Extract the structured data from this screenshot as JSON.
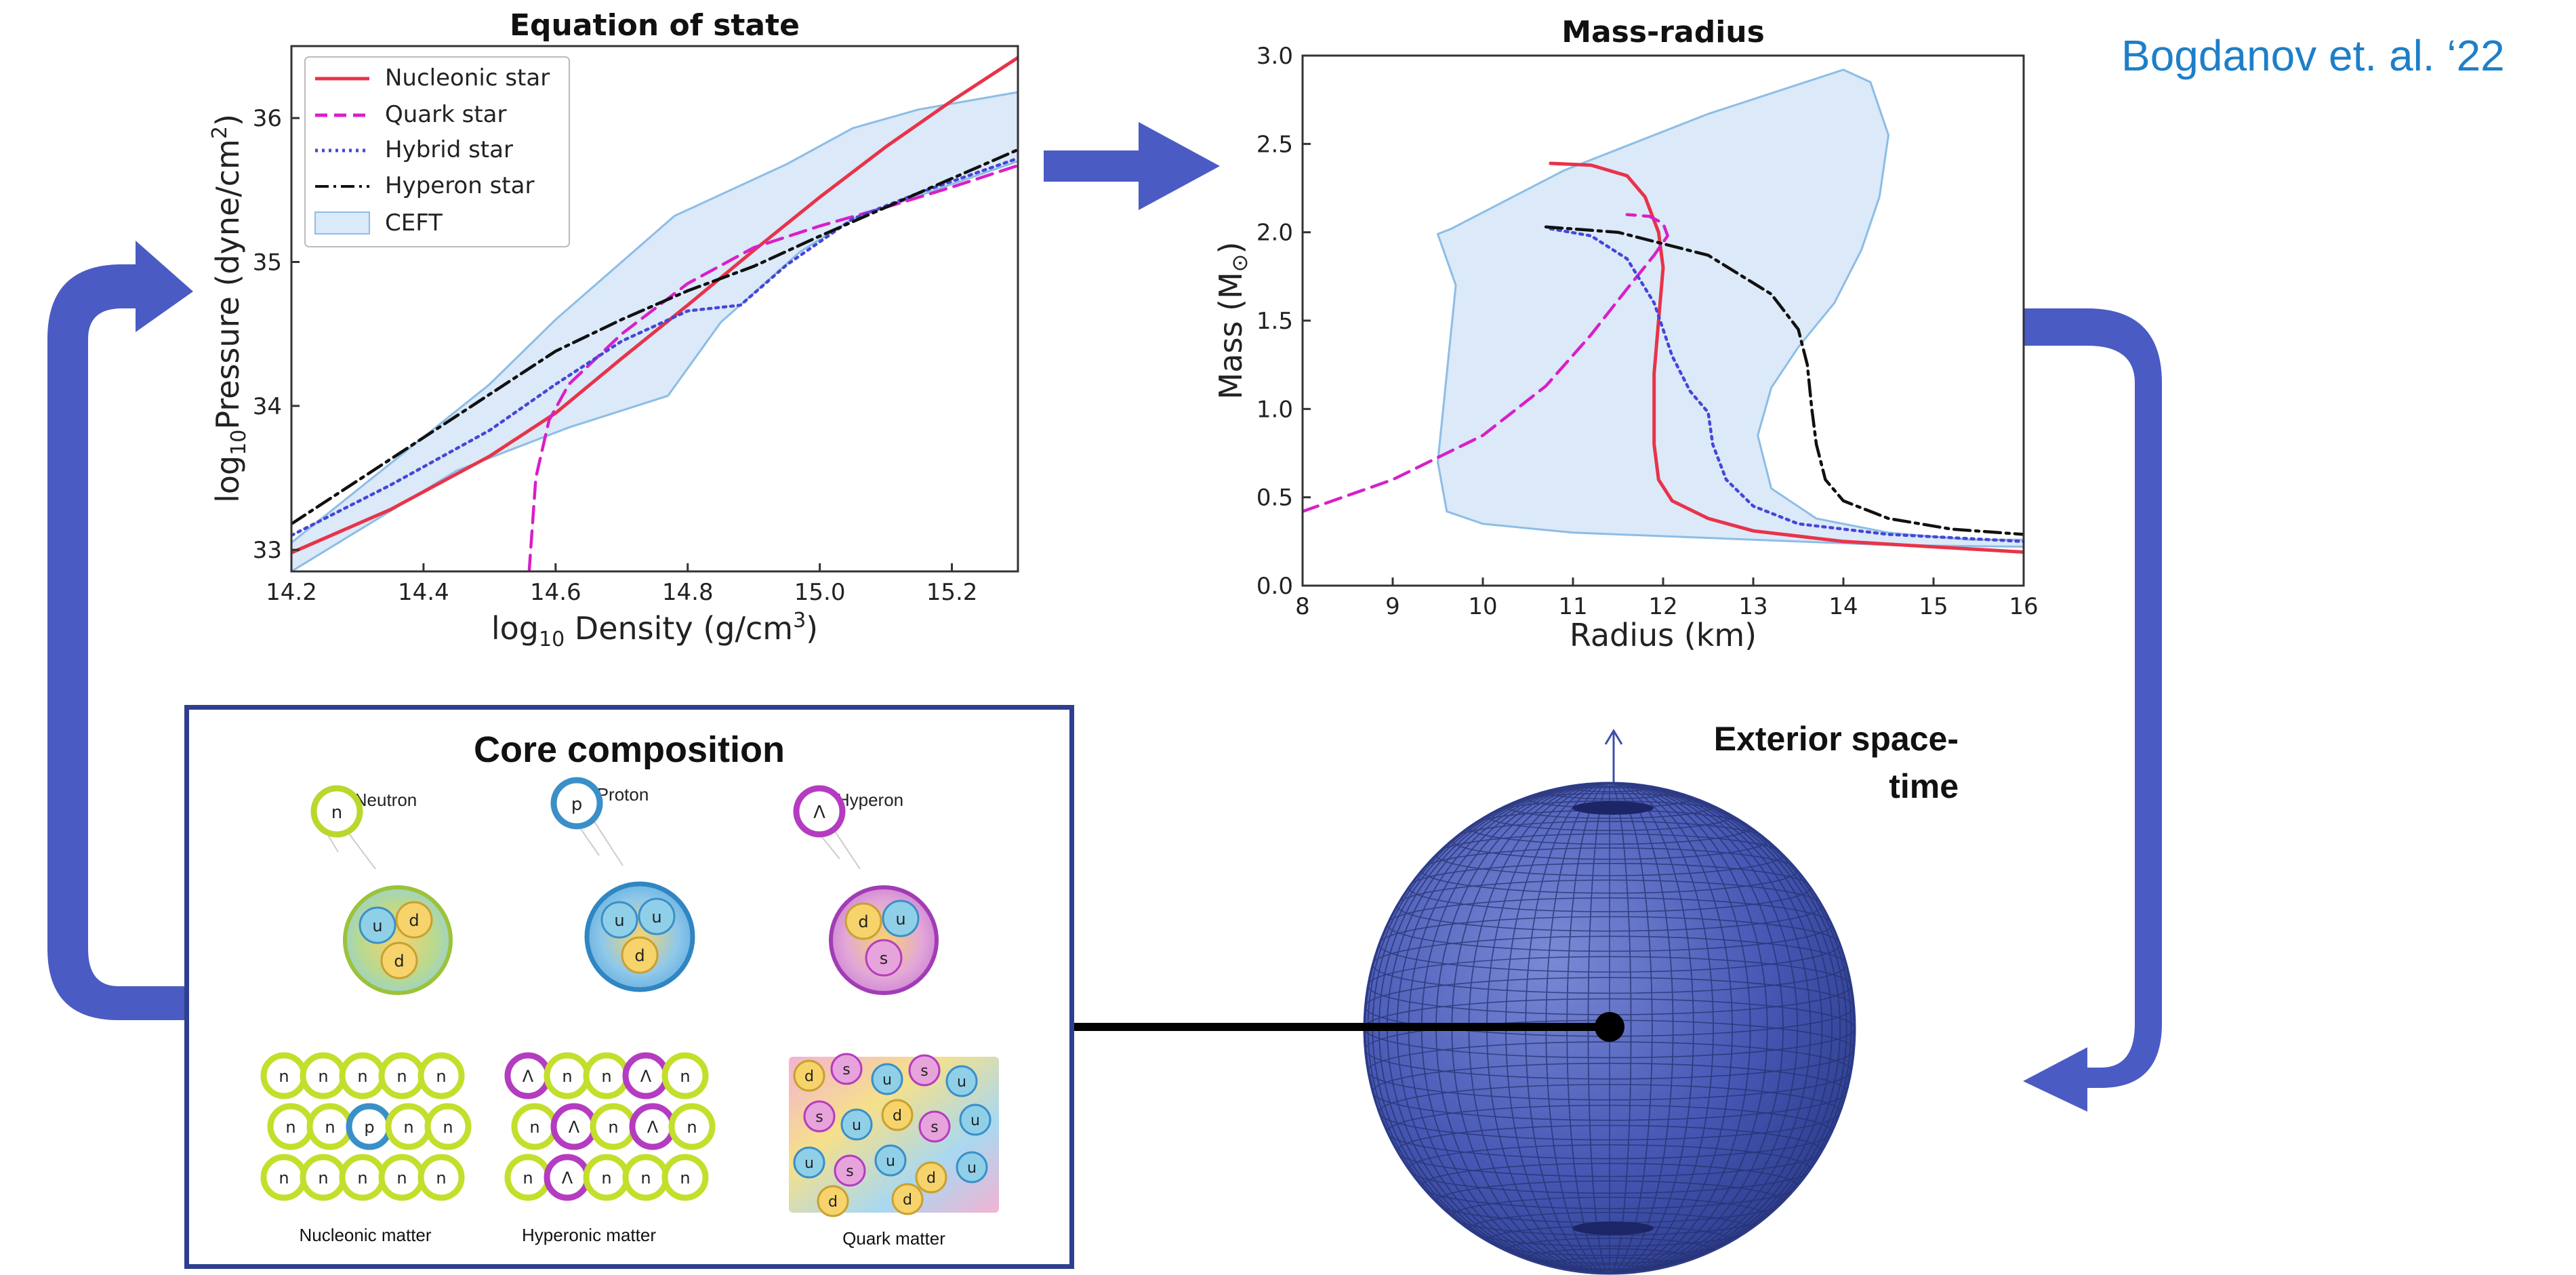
{
  "citation": "Bogdanov et. al. ‘22",
  "eos_chart": {
    "title": "Equation of state",
    "xlabel_prefix": "log",
    "xlabel_sub": "10",
    "xlabel_main": " Density (g/cm",
    "xlabel_sup": "3",
    "xlabel_end": ")",
    "ylabel_prefix": "log",
    "ylabel_sub": "10",
    "ylabel_main": "Pressure (dyne/cm",
    "ylabel_sup": "2",
    "ylabel_end": ")",
    "xticks": [
      "14.2",
      "14.4",
      "14.6",
      "14.8",
      "15.0",
      "15.2"
    ],
    "yticks": [
      "33",
      "34",
      "35",
      "36"
    ],
    "legend": [
      "Nucleonic star",
      "Quark star",
      "Hybrid star",
      "Hyperon star",
      "CEFT"
    ]
  },
  "mr_chart": {
    "title": "Mass-radius",
    "xlabel": "Radius (km)",
    "ylabel_main": "Mass (M",
    "ylabel_sub": "⊙",
    "ylabel_end": ")",
    "xticks": [
      "8",
      "9",
      "10",
      "11",
      "12",
      "13",
      "14",
      "15",
      "16"
    ],
    "yticks": [
      "0.0",
      "0.5",
      "1.0",
      "1.5",
      "2.0",
      "2.5",
      "3.0"
    ]
  },
  "core": {
    "title": "Core composition",
    "particles": [
      {
        "label": "Neutron",
        "symbol": "n",
        "quarks": [
          "u",
          "d",
          "d"
        ]
      },
      {
        "label": "Proton",
        "symbol": "p",
        "quarks": [
          "u",
          "u",
          "d"
        ]
      },
      {
        "label": "Hyperon",
        "symbol": "Λ",
        "quarks": [
          "d",
          "u",
          "s"
        ]
      }
    ],
    "matter": [
      "Nucleonic matter",
      "Hyperonic matter",
      "Quark matter"
    ]
  },
  "exterior_label_line1": "Exterior space-",
  "exterior_label_line2": "time",
  "colors": {
    "nucleonic": "#e8334a",
    "quark": "#d81fc8",
    "hybrid": "#4646d8",
    "hyperon": "#111111",
    "ceft_fill": "#dbe9f8",
    "ceft_edge": "#8cbde6",
    "arrow": "#4a5bc4",
    "sphere": "#3d4fa8",
    "box_border": "#2e3f8f",
    "citation": "#1e7fc8"
  },
  "chart_data": [
    {
      "type": "line",
      "title": "Equation of state",
      "xlabel": "log10 Density (g/cm3)",
      "ylabel": "log10Pressure (dyne/cm2)",
      "xlim": [
        14.2,
        15.3
      ],
      "ylim": [
        32.85,
        36.5
      ],
      "grid": false,
      "legend_position": "top-left",
      "series": [
        {
          "name": "Nucleonic star",
          "style": "solid",
          "x": [
            14.2,
            14.35,
            14.5,
            14.6,
            14.7,
            14.8,
            14.9,
            15.0,
            15.1,
            15.2,
            15.3
          ],
          "y": [
            32.98,
            33.28,
            33.65,
            33.95,
            34.33,
            34.7,
            35.08,
            35.45,
            35.8,
            36.12,
            36.42
          ]
        },
        {
          "name": "Quark star",
          "style": "dashed",
          "x": [
            14.56,
            14.57,
            14.59,
            14.62,
            14.7,
            14.8,
            14.9,
            15.0,
            15.1,
            15.2,
            15.3
          ],
          "y": [
            32.85,
            33.5,
            33.9,
            34.15,
            34.5,
            34.85,
            35.1,
            35.25,
            35.38,
            35.52,
            35.67
          ]
        },
        {
          "name": "Hybrid star",
          "style": "dotted",
          "x": [
            14.2,
            14.35,
            14.5,
            14.6,
            14.7,
            14.8,
            14.88,
            14.95,
            15.05,
            15.15,
            15.3
          ],
          "y": [
            33.1,
            33.45,
            33.83,
            34.15,
            34.45,
            34.66,
            34.7,
            34.98,
            35.3,
            35.48,
            35.72
          ]
        },
        {
          "name": "Hyperon star",
          "style": "dashdot",
          "x": [
            14.2,
            14.35,
            14.5,
            14.6,
            14.7,
            14.8,
            14.9,
            15.0,
            15.1,
            15.2,
            15.3
          ],
          "y": [
            33.18,
            33.63,
            34.08,
            34.38,
            34.6,
            34.8,
            34.97,
            35.18,
            35.38,
            35.58,
            35.78
          ]
        }
      ],
      "band": {
        "name": "CEFT",
        "upper_x": [
          14.2,
          14.5,
          14.6,
          14.78,
          14.95,
          15.05,
          15.15,
          15.3
        ],
        "upper_y": [
          33.05,
          34.15,
          34.6,
          35.32,
          35.68,
          35.93,
          36.06,
          36.18
        ],
        "lower_x": [
          14.2,
          14.45,
          14.62,
          14.77,
          14.85,
          14.97,
          15.05,
          15.3
        ],
        "lower_y": [
          32.85,
          33.55,
          33.85,
          34.07,
          34.58,
          35.07,
          35.3,
          35.7
        ]
      }
    },
    {
      "type": "line",
      "title": "Mass-radius",
      "xlabel": "Radius (km)",
      "ylabel": "Mass (M⊙)",
      "xlim": [
        8,
        16
      ],
      "ylim": [
        0,
        3
      ],
      "grid": false,
      "series": [
        {
          "name": "Nucleonic star",
          "style": "solid",
          "x": [
            10.75,
            11.2,
            11.6,
            11.8,
            11.95,
            12.0,
            11.95,
            11.9,
            11.9,
            11.95,
            12.1,
            12.5,
            13.0,
            14.0,
            15.0,
            16.0
          ],
          "y": [
            2.39,
            2.38,
            2.32,
            2.2,
            2.0,
            1.8,
            1.5,
            1.2,
            0.8,
            0.6,
            0.48,
            0.38,
            0.31,
            0.25,
            0.22,
            0.19
          ]
        },
        {
          "name": "Quark star",
          "style": "dashed",
          "x": [
            8.0,
            9.0,
            10.0,
            10.7,
            11.2,
            11.6,
            11.9,
            12.05,
            12.0,
            11.85,
            11.6
          ],
          "y": [
            0.42,
            0.6,
            0.85,
            1.13,
            1.42,
            1.68,
            1.87,
            1.98,
            2.05,
            2.09,
            2.1
          ]
        },
        {
          "name": "Hybrid star",
          "style": "dotted",
          "x": [
            10.75,
            11.2,
            11.6,
            11.9,
            12.1,
            12.3,
            12.5,
            12.55,
            12.7,
            13.0,
            13.5,
            14.5,
            16.0
          ],
          "y": [
            2.02,
            1.98,
            1.85,
            1.6,
            1.3,
            1.1,
            0.98,
            0.8,
            0.6,
            0.45,
            0.35,
            0.29,
            0.25
          ]
        },
        {
          "name": "Hyperon star",
          "style": "dashdot",
          "x": [
            10.7,
            11.5,
            12.5,
            13.2,
            13.5,
            13.6,
            13.65,
            13.7,
            13.8,
            14.0,
            14.5,
            15.2,
            16.0
          ],
          "y": [
            2.03,
            2.0,
            1.87,
            1.65,
            1.45,
            1.25,
            1.0,
            0.8,
            0.6,
            0.48,
            0.38,
            0.32,
            0.29
          ]
        }
      ],
      "band": {
        "name": "CEFT",
        "outline_x": [
          9.5,
          9.65,
          10.9,
          12.5,
          14.0,
          14.3,
          14.5,
          14.4,
          14.2,
          13.9,
          13.5,
          13.2,
          13.05,
          13.2,
          13.7,
          14.5,
          15.4,
          16.0,
          16.0,
          14.5,
          13.0,
          12.0,
          11.0,
          10.0,
          9.6,
          9.5,
          9.6,
          9.7,
          9.5
        ],
        "outline_y": [
          1.99,
          2.02,
          2.35,
          2.67,
          2.92,
          2.85,
          2.55,
          2.2,
          1.9,
          1.6,
          1.35,
          1.12,
          0.85,
          0.55,
          0.38,
          0.3,
          0.26,
          0.26,
          0.22,
          0.23,
          0.26,
          0.28,
          0.3,
          0.35,
          0.42,
          0.7,
          1.2,
          1.7,
          1.99
        ]
      }
    }
  ]
}
